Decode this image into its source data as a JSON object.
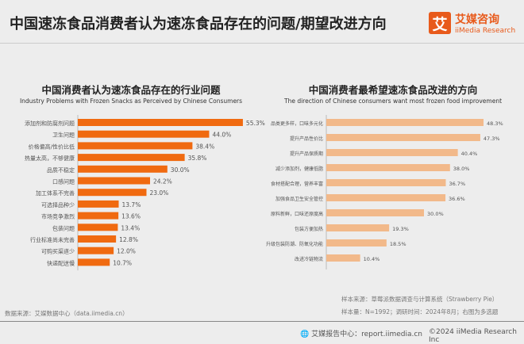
{
  "header": {
    "title": "中国速冻食品消费者认为速冻食品存在的问题/期望改进方向",
    "logo_mark": "艾",
    "logo_cn": "艾媒咨询",
    "logo_en": "iiMedia Research"
  },
  "chart_data": [
    {
      "type": "bar",
      "orientation": "horizontal",
      "title": "中国消费者认为速冻食品存在的行业问题",
      "subtitle": "Industry Problems with Frozen Snacks as Perceived by Chinese Consumers",
      "color": "#f06a10",
      "categories": [
        "添加剂和防腐剂问题",
        "卫生问题",
        "价格偏高/性价比低",
        "热量太高，不够健康",
        "品质不稳定",
        "口感问题",
        "加工体系不完善",
        "可选择品种少",
        "市场竞争激烈",
        "包装问题",
        "行业标准尚未完善",
        "可购买渠道少",
        "快递配送慢"
      ],
      "values": [
        55.3,
        44.0,
        38.4,
        35.8,
        30.0,
        24.2,
        23.0,
        13.7,
        13.6,
        13.4,
        12.8,
        12.0,
        10.7
      ],
      "labels": [
        "55.3%",
        "44.0%",
        "38.4%",
        "35.8%",
        "30.0%",
        "24.2%",
        "23.0%",
        "13.7%",
        "13.6%",
        "13.4%",
        "12.8%",
        "12.0%",
        "10.7%"
      ]
    },
    {
      "type": "bar",
      "orientation": "horizontal",
      "title": "中国消费者最希望速冻食品改进的方向",
      "subtitle": "The direction of Chinese consumers want most frozen food improvement",
      "color": "#f2b98a",
      "categories": [
        "品类更多样，口味多元化",
        "提升产品性价比",
        "提升产品保质期",
        "减少添加剂，健康低脂",
        "食材搭配合理，营养丰富",
        "加强食品卫生安全管控",
        "原料新鲜，口味还原度高",
        "包装方便加热",
        "升级包装防潮、防氧化功能",
        "改进冷链物流"
      ],
      "values": [
        48.3,
        47.3,
        40.4,
        38.0,
        36.7,
        36.6,
        30.0,
        19.3,
        18.5,
        10.4
      ],
      "labels": [
        "48.3%",
        "47.3%",
        "40.4%",
        "38.0%",
        "36.7%",
        "36.6%",
        "30.0%",
        "19.3%",
        "18.5%",
        "10.4%"
      ]
    }
  ],
  "footer": {
    "source_left": "数据来源：艾媒数据中心（data.iimedia.cn）",
    "sample_source": "样本来源：草莓派数据调查与计算系统（Strawberry Pie）",
    "sample_size": "样本量：N=1992；调研时间：2024年8月；右图为多选题",
    "report": "艾媒报告中心：report.iimedia.cn",
    "copyright": "©2024  iiMedia Research Inc"
  }
}
